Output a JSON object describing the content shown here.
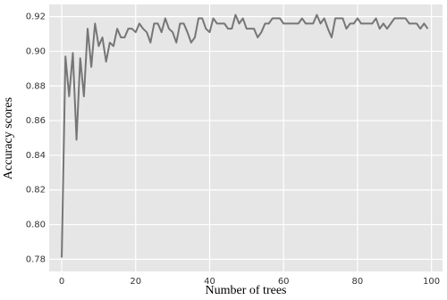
{
  "chart_data": {
    "type": "line",
    "x_label": "Number of trees",
    "y_label": "Accuracy scores",
    "x": [
      0,
      1,
      2,
      3,
      4,
      5,
      6,
      7,
      8,
      9,
      10,
      11,
      12,
      13,
      14,
      15,
      16,
      17,
      18,
      19,
      20,
      21,
      22,
      23,
      24,
      25,
      26,
      27,
      28,
      29,
      30,
      31,
      32,
      33,
      34,
      35,
      36,
      37,
      38,
      39,
      40,
      41,
      42,
      43,
      44,
      45,
      46,
      47,
      48,
      49,
      50,
      51,
      52,
      53,
      54,
      55,
      56,
      57,
      58,
      59,
      60,
      61,
      62,
      63,
      64,
      65,
      66,
      67,
      68,
      69,
      70,
      71,
      72,
      73,
      74,
      75,
      76,
      77,
      78,
      79,
      80,
      81,
      82,
      83,
      84,
      85,
      86,
      87,
      88,
      89,
      90,
      91,
      92,
      93,
      94,
      95,
      96,
      97,
      98,
      99
    ],
    "series": [
      {
        "color": "#767676",
        "values": [
          0.781,
          0.897,
          0.874,
          0.899,
          0.849,
          0.896,
          0.874,
          0.913,
          0.891,
          0.916,
          0.903,
          0.908,
          0.894,
          0.905,
          0.903,
          0.913,
          0.908,
          0.908,
          0.913,
          0.913,
          0.911,
          0.916,
          0.913,
          0.911,
          0.905,
          0.916,
          0.916,
          0.911,
          0.919,
          0.913,
          0.911,
          0.905,
          0.916,
          0.916,
          0.911,
          0.905,
          0.908,
          0.919,
          0.919,
          0.913,
          0.911,
          0.919,
          0.916,
          0.916,
          0.916,
          0.913,
          0.913,
          0.921,
          0.916,
          0.919,
          0.913,
          0.913,
          0.913,
          0.908,
          0.911,
          0.916,
          0.916,
          0.919,
          0.919,
          0.919,
          0.916,
          0.916,
          0.916,
          0.916,
          0.916,
          0.919,
          0.916,
          0.916,
          0.916,
          0.921,
          0.916,
          0.919,
          0.913,
          0.908,
          0.919,
          0.919,
          0.919,
          0.913,
          0.916,
          0.916,
          0.919,
          0.916,
          0.916,
          0.916,
          0.916,
          0.919,
          0.913,
          0.916,
          0.913,
          0.916,
          0.919,
          0.919,
          0.919,
          0.919,
          0.916,
          0.916,
          0.916,
          0.913,
          0.916,
          0.913
        ]
      }
    ],
    "xlim": [
      -3.4,
      103
    ],
    "ylim": [
      0.773,
      0.927
    ],
    "xticks": [
      0,
      20,
      40,
      60,
      80,
      100
    ],
    "yticks": [
      0.78,
      {
        "value": 0.8,
        "label": "0.80"
      },
      0.82,
      0.84,
      0.86,
      0.88,
      {
        "value": 0.9,
        "label": "0.90"
      },
      0.92
    ],
    "grid": true,
    "background": "#e6e6e6"
  }
}
